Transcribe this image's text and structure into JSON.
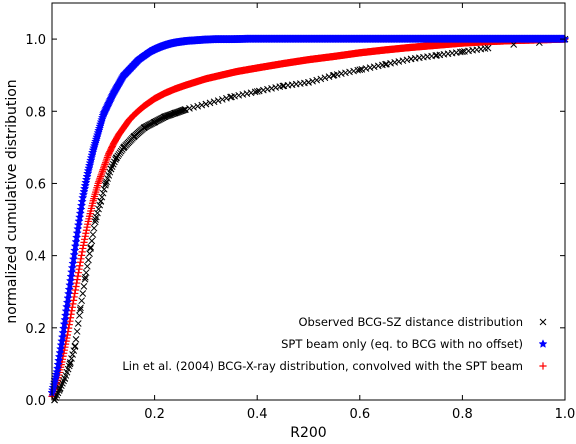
{
  "chart_data": {
    "type": "scatter",
    "xlabel": "R200",
    "ylabel": "normalized cumulative distribution",
    "xlim": [
      0.0,
      1.0
    ],
    "ylim": [
      0.0,
      1.1
    ],
    "x_ticks": [
      {
        "value": 0.2,
        "label": "0.2"
      },
      {
        "value": 0.4,
        "label": "0.4"
      },
      {
        "value": 0.6,
        "label": "0.6"
      },
      {
        "value": 0.8,
        "label": "0.8"
      },
      {
        "value": 1.0,
        "label": "1.0"
      }
    ],
    "y_ticks": [
      {
        "value": 0.0,
        "label": "0.0"
      },
      {
        "value": 0.2,
        "label": "0.2"
      },
      {
        "value": 0.4,
        "label": "0.4"
      },
      {
        "value": 0.6,
        "label": "0.6"
      },
      {
        "value": 0.8,
        "label": "0.8"
      },
      {
        "value": 1.0,
        "label": "1.0"
      }
    ],
    "grid": false,
    "legend_position": "lower-right",
    "series": [
      {
        "name": "Observed BCG-SZ distance distribution",
        "marker": "x",
        "color": "#000000",
        "x": [
          0.005,
          0.015,
          0.025,
          0.035,
          0.045,
          0.055,
          0.065,
          0.075,
          0.085,
          0.095,
          0.105,
          0.115,
          0.125,
          0.14,
          0.16,
          0.18,
          0.2,
          0.22,
          0.24,
          0.26,
          0.3,
          0.35,
          0.4,
          0.45,
          0.5,
          0.55,
          0.6,
          0.65,
          0.7,
          0.75,
          0.8,
          0.85,
          0.9,
          0.95,
          1.0
        ],
        "y": [
          0.0,
          0.03,
          0.06,
          0.1,
          0.15,
          0.25,
          0.34,
          0.42,
          0.5,
          0.55,
          0.6,
          0.64,
          0.67,
          0.7,
          0.73,
          0.755,
          0.77,
          0.785,
          0.795,
          0.805,
          0.82,
          0.84,
          0.855,
          0.87,
          0.88,
          0.9,
          0.915,
          0.93,
          0.945,
          0.955,
          0.965,
          0.975,
          0.985,
          0.99,
          1.0
        ]
      },
      {
        "name": "SPT beam only (eq. to BCG with no offset)",
        "marker": "star",
        "color": "#0000ff",
        "x": [
          0.0,
          0.01,
          0.02,
          0.03,
          0.04,
          0.05,
          0.06,
          0.07,
          0.08,
          0.09,
          0.1,
          0.11,
          0.12,
          0.13,
          0.14,
          0.15,
          0.16,
          0.17,
          0.18,
          0.19,
          0.2,
          0.21,
          0.22,
          0.23,
          0.24,
          0.25,
          0.26,
          0.27,
          0.28,
          0.29,
          0.3,
          0.32,
          0.35,
          0.38,
          0.4,
          0.45,
          0.5,
          0.6,
          0.7,
          0.8,
          0.9,
          1.0
        ],
        "y": [
          0.02,
          0.08,
          0.17,
          0.27,
          0.37,
          0.47,
          0.56,
          0.63,
          0.69,
          0.74,
          0.79,
          0.82,
          0.85,
          0.875,
          0.9,
          0.915,
          0.93,
          0.945,
          0.955,
          0.965,
          0.972,
          0.978,
          0.983,
          0.987,
          0.99,
          0.992,
          0.994,
          0.995,
          0.996,
          0.997,
          0.998,
          0.999,
          0.999,
          1.0,
          1.0,
          1.0,
          1.0,
          1.0,
          1.0,
          1.0,
          1.0,
          1.0
        ]
      },
      {
        "name": "Lin et al. (2004) BCG-X-ray distribution, convolved with the SPT beam",
        "marker": "+",
        "color": "#ff0000",
        "x": [
          0.0,
          0.01,
          0.02,
          0.03,
          0.04,
          0.05,
          0.06,
          0.07,
          0.08,
          0.09,
          0.1,
          0.11,
          0.12,
          0.13,
          0.14,
          0.15,
          0.16,
          0.17,
          0.18,
          0.19,
          0.2,
          0.22,
          0.24,
          0.26,
          0.28,
          0.3,
          0.33,
          0.36,
          0.4,
          0.45,
          0.5,
          0.55,
          0.6,
          0.65,
          0.7,
          0.75,
          0.8,
          0.85,
          0.9,
          0.95,
          1.0
        ],
        "y": [
          0.01,
          0.05,
          0.11,
          0.18,
          0.26,
          0.34,
          0.42,
          0.49,
          0.55,
          0.6,
          0.64,
          0.68,
          0.71,
          0.735,
          0.755,
          0.775,
          0.79,
          0.803,
          0.815,
          0.825,
          0.835,
          0.85,
          0.862,
          0.872,
          0.881,
          0.89,
          0.9,
          0.91,
          0.92,
          0.932,
          0.943,
          0.952,
          0.962,
          0.97,
          0.977,
          0.983,
          0.989,
          0.993,
          0.996,
          0.998,
          1.0
        ]
      }
    ]
  }
}
